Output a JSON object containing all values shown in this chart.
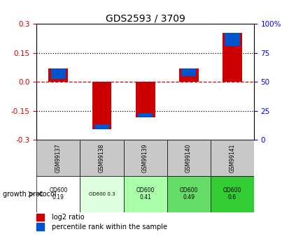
{
  "title": "GDS2593 / 3709",
  "samples": [
    "GSM99137",
    "GSM99138",
    "GSM99139",
    "GSM99140",
    "GSM99141"
  ],
  "log2_ratio": [
    0.07,
    -0.245,
    -0.185,
    0.07,
    0.255
  ],
  "blue_bar_values": [
    0.055,
    -0.025,
    -0.022,
    0.04,
    0.068
  ],
  "blue_bar_bottoms": [
    0.015,
    -0.22,
    -0.163,
    0.03,
    0.187
  ],
  "ylim": [
    -0.3,
    0.3
  ],
  "yticks_left": [
    -0.3,
    -0.15,
    0.0,
    0.15,
    0.3
  ],
  "yticks_right": [
    0,
    25,
    50,
    75,
    100
  ],
  "bar_width": 0.45,
  "blue_bar_width": 0.35,
  "red_color": "#cc0000",
  "blue_color": "#0055cc",
  "protocol_labels": [
    "OD600\n0.19",
    "OD600 0.3",
    "OD600\n0.41",
    "OD600\n0.49",
    "OD600\n0.6"
  ],
  "protocol_colors": [
    "#ffffff",
    "#ddffdd",
    "#aaffaa",
    "#66dd66",
    "#33cc33"
  ],
  "sample_bg_color": "#c8c8c8",
  "zero_line_color": "#cc0000",
  "legend_items": [
    "log2 ratio",
    "percentile rank within the sample"
  ]
}
